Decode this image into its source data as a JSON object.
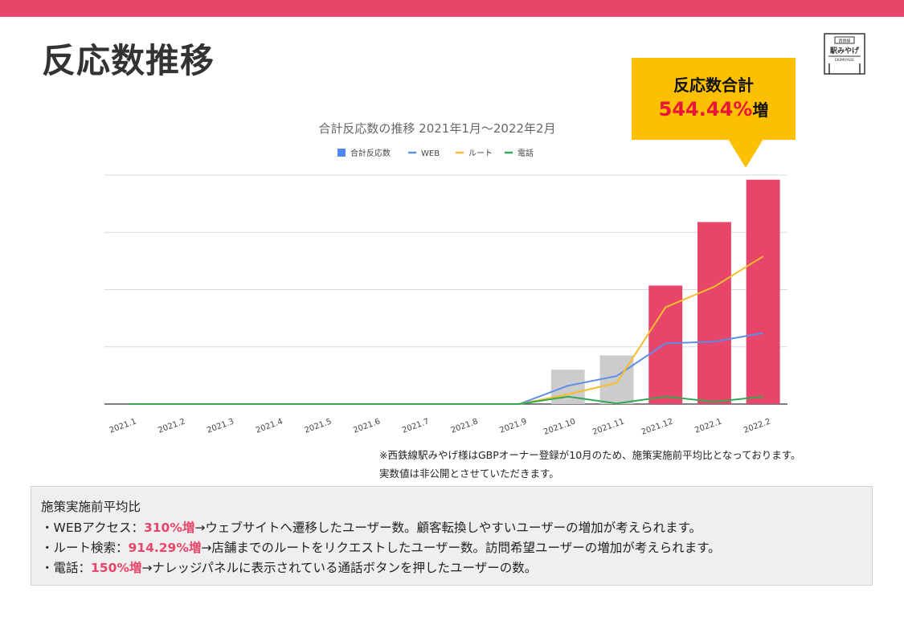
{
  "page": {
    "title": "反応数推移"
  },
  "logo": {
    "top": "西鉄線",
    "name": "駅みやげ",
    "sub": "EKIMIYAGE"
  },
  "callout": {
    "title": "反応数合計",
    "percent": "544.44%",
    "suffix": "増"
  },
  "colors": {
    "accent": "#e8456b",
    "callout_bg": "#fcc000",
    "highlight_red": "#e8153a",
    "bar_gray": "#cccccc",
    "web": "#5b8ee6",
    "route": "#f6be2c",
    "phone": "#34a853"
  },
  "chart_data": {
    "type": "bar+line",
    "title": "合計反応数の推移  2021年1月～2022年2月",
    "categories": [
      "2021.1",
      "2021.2",
      "2021.3",
      "2021.4",
      "2021.5",
      "2021.6",
      "2021.7",
      "2021.8",
      "2021.9",
      "2021.10",
      "2021.11",
      "2021.12",
      "2022.1",
      "2022.2"
    ],
    "series": [
      {
        "name": "合計反応数",
        "kind": "bar",
        "values": [
          0,
          0,
          0,
          0,
          0,
          0,
          0,
          0,
          0,
          6,
          8.5,
          20.7,
          31.8,
          39.2
        ]
      },
      {
        "name": "WEB",
        "kind": "line",
        "values": [
          0,
          0,
          0,
          0,
          0,
          0,
          0,
          0,
          0,
          3.2,
          4.9,
          10.6,
          10.9,
          12.4
        ]
      },
      {
        "name": "ルート",
        "kind": "line",
        "values": [
          0,
          0,
          0,
          0,
          0,
          0,
          0,
          0,
          0,
          1.7,
          3.7,
          16.9,
          20.5,
          25.8
        ]
      },
      {
        "name": "電話",
        "kind": "line",
        "values": [
          0,
          0,
          0,
          0,
          0,
          0,
          0,
          0,
          0,
          1.3,
          0.1,
          1.3,
          0.4,
          1.3
        ]
      }
    ],
    "bar_colors": [
      "#cccccc",
      "#cccccc",
      "#cccccc",
      "#cccccc",
      "#cccccc",
      "#cccccc",
      "#cccccc",
      "#cccccc",
      "#cccccc",
      "#cccccc",
      "#cccccc",
      "#e8456b",
      "#e8456b",
      "#e8456b"
    ],
    "ylim": [
      0,
      40
    ],
    "y_gridlines": [
      0,
      10,
      20,
      30,
      40
    ],
    "y_tick_labels_shown": false,
    "legend_position": "top-center",
    "xlabel": "",
    "ylabel": ""
  },
  "notes": [
    "※西鉄線駅みやげ様はGBPオーナー登録が10月のため、施策実施前平均比となっております。",
    "実数値は非公開とさせていただきます。"
  ],
  "summary": {
    "title": "施策実施前平均比",
    "items": [
      {
        "label": "・WEBアクセス：",
        "value": "310%増",
        "desc": "→ウェブサイトへ遷移したユーザー数。顧客転換しやすいユーザーの増加が考えられます。"
      },
      {
        "label": "・ルート検索：",
        "value": "914.29%増",
        "desc": "→店舗までのルートをリクエストしたユーザー数。訪問希望ユーザーの増加が考えられます。"
      },
      {
        "label": "・電話：",
        "value": "150%増",
        "desc": "→ナレッジパネルに表示されている通話ボタンを押したユーザーの数。"
      }
    ]
  }
}
